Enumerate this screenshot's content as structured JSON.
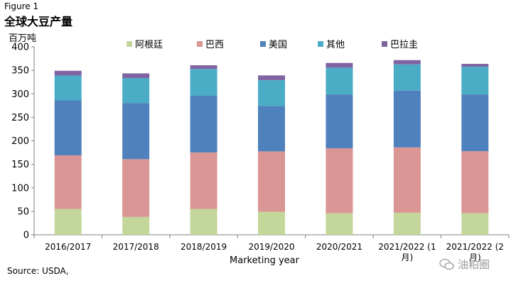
{
  "figure_label": "Figure 1",
  "source": "Source: USDA,",
  "watermark": "油粕圈",
  "chart_data": {
    "type": "bar",
    "stacked": true,
    "title": "全球大豆产量",
    "ylabel": "百万吨",
    "xlabel": "Marketing year",
    "ylim": [
      0,
      400
    ],
    "yticks": [
      0,
      50,
      100,
      150,
      200,
      250,
      300,
      350,
      400
    ],
    "legend_position": "top",
    "categories": [
      "2016/2017",
      "2017/2018",
      "2018/2019",
      "2019/2020",
      "2020/2021",
      "2021/2022 (1月)",
      "2021/2022 (2月)"
    ],
    "category_lines": [
      [
        "2016/2017"
      ],
      [
        "2017/2018"
      ],
      [
        "2018/2019"
      ],
      [
        "2019/2020"
      ],
      [
        "2020/2021"
      ],
      [
        "2021/2022 (1",
        "月)"
      ],
      [
        "2021/2022 (2",
        "月)"
      ]
    ],
    "series": [
      {
        "name": "阿根廷",
        "color": "#c4d79b",
        "values": [
          55,
          38,
          55,
          49,
          46,
          47,
          46
        ]
      },
      {
        "name": "巴西",
        "color": "#da9694",
        "values": [
          114.1,
          123,
          120.3,
          128.5,
          138,
          139,
          132
        ]
      },
      {
        "name": "美国",
        "color": "#4f81bd",
        "values": [
          116.9,
          119.5,
          120.5,
          96.7,
          114.7,
          120.7,
          120.7
        ]
      },
      {
        "name": "其他",
        "color": "#4bacc6",
        "values": [
          53,
          53,
          57,
          55,
          57,
          56,
          59
        ]
      },
      {
        "name": "巴拉圭",
        "color": "#8064a2",
        "values": [
          10,
          10,
          8,
          10,
          10,
          9,
          6
        ]
      }
    ]
  }
}
